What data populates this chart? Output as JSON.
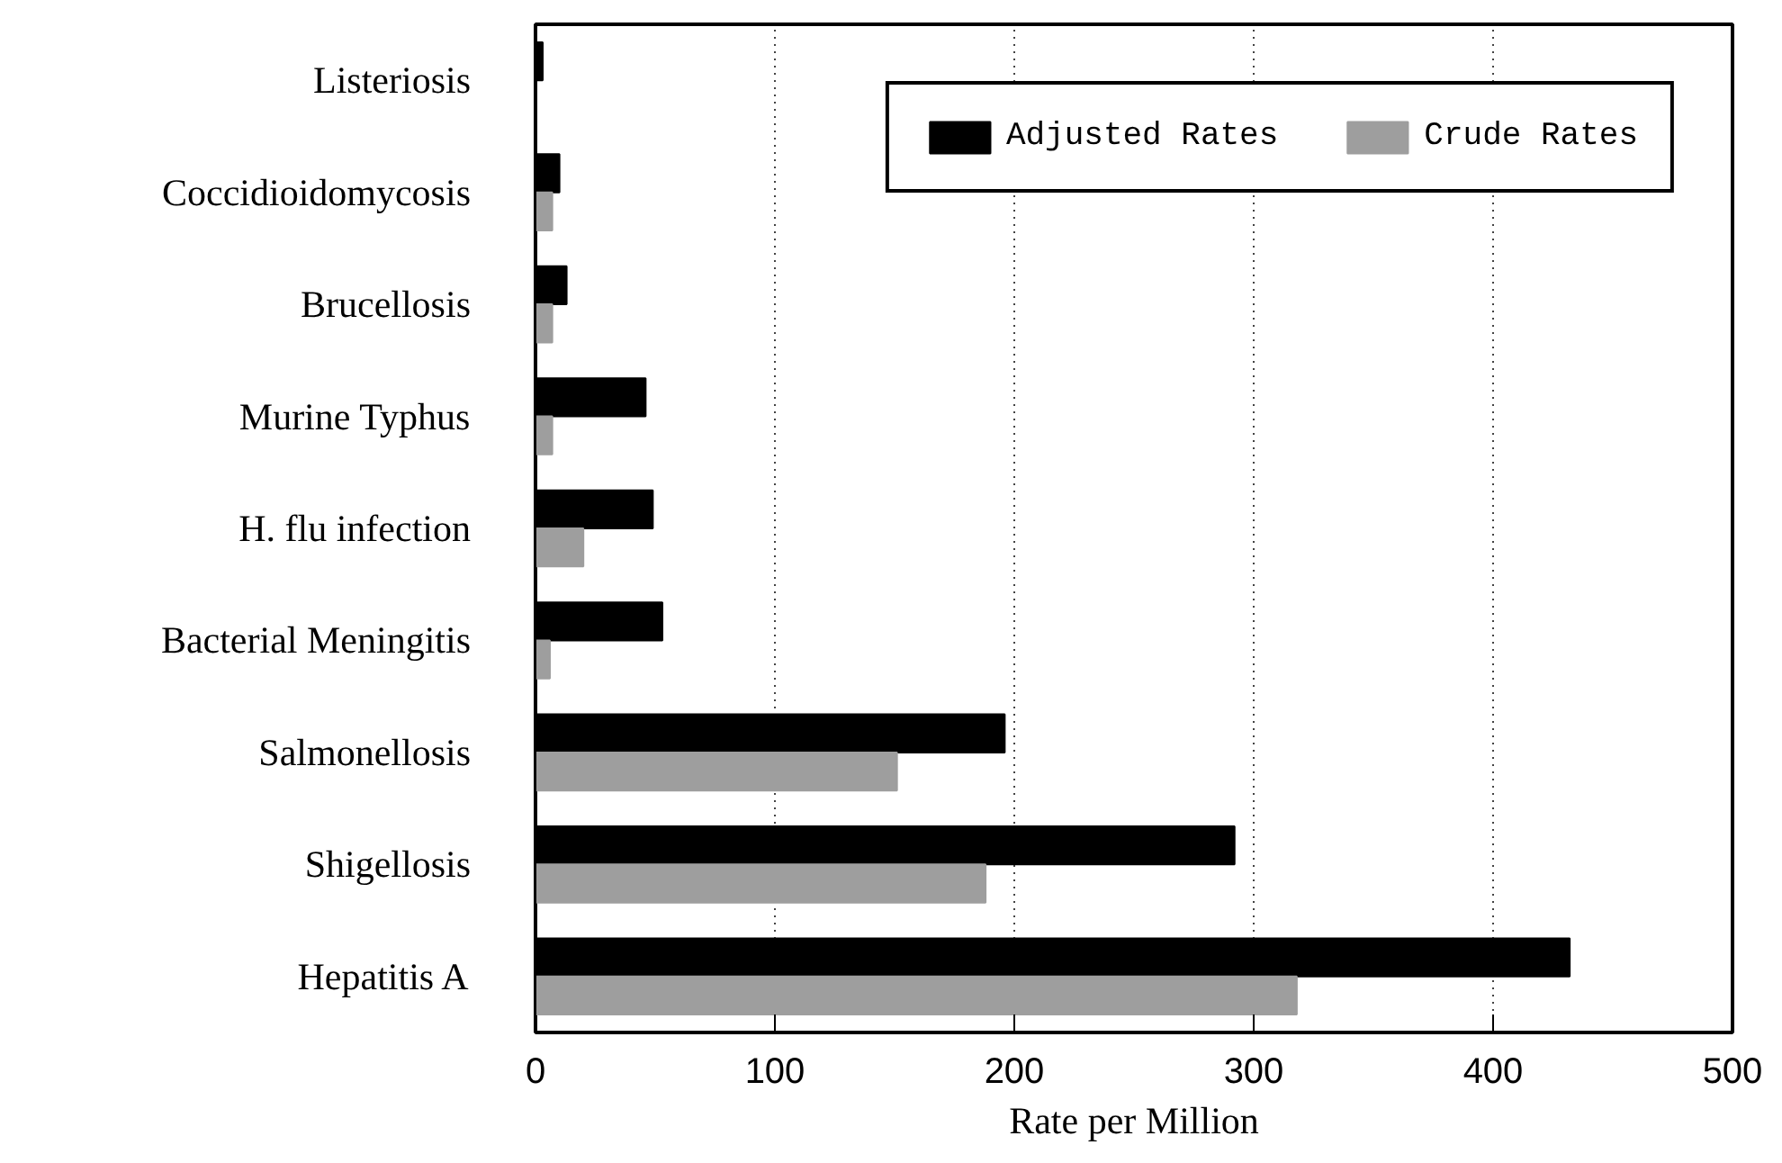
{
  "chart_data": {
    "type": "bar",
    "orientation": "horizontal",
    "categories": [
      "Listeriosis",
      "Coccidioidomycosis",
      "Brucellosis",
      "Murine Typhus",
      "H. flu infection",
      "Bacterial Meningitis",
      "Salmonellosis",
      "Shigellosis",
      "Hepatitis A"
    ],
    "series": [
      {
        "name": "Adjusted Rates",
        "color": "#000000",
        "values": [
          3,
          10,
          13,
          46,
          49,
          53,
          196,
          292,
          432
        ]
      },
      {
        "name": "Crude Rates",
        "color": "#9e9e9e",
        "values": [
          null,
          7,
          7,
          7,
          20,
          6,
          151,
          188,
          318
        ]
      }
    ],
    "xlabel": "Rate per Million",
    "xlim": [
      0,
      500
    ],
    "xticks": [
      0,
      100,
      200,
      300,
      400,
      500
    ],
    "grid": "x",
    "legend": "top right"
  }
}
